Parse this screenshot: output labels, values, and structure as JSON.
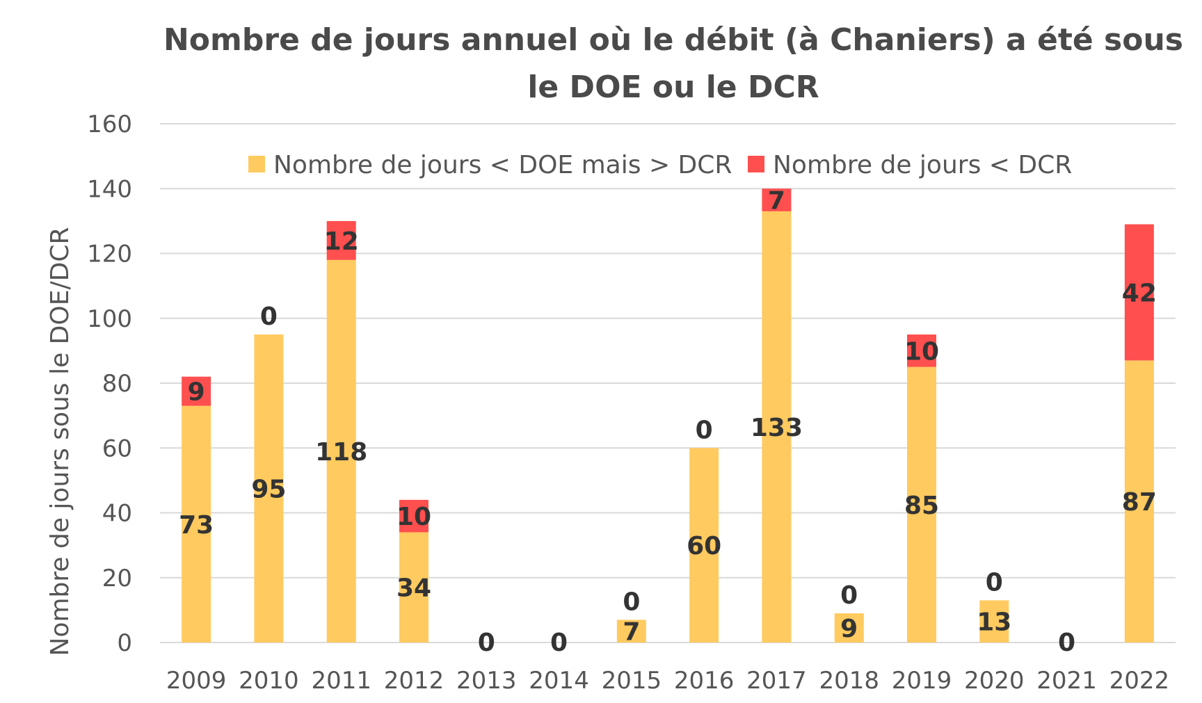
{
  "chart_data": {
    "type": "bar",
    "stacked": true,
    "title_line1": "Nombre de jours annuel où le débit (à Chaniers) a été sous",
    "title_line2": "le DOE ou le DCR",
    "xlabel": "",
    "ylabel": "Nombre de jours sous le DOE/DCR",
    "ylim": [
      0,
      160
    ],
    "yticks": [
      0,
      20,
      40,
      60,
      80,
      100,
      120,
      140,
      160
    ],
    "grid": true,
    "legend_position": "top",
    "categories": [
      "2009",
      "2010",
      "2011",
      "2012",
      "2013",
      "2014",
      "2015",
      "2016",
      "2017",
      "2018",
      "2019",
      "2020",
      "2021",
      "2022"
    ],
    "series": [
      {
        "name": "Nombre de jours < DOE mais > DCR",
        "color": "#FFCA5F",
        "values": [
          73,
          95,
          118,
          34,
          0,
          0,
          7,
          60,
          133,
          9,
          85,
          13,
          0,
          87
        ]
      },
      {
        "name": "Nombre de jours < DCR",
        "color": "#FF4F4F",
        "values": [
          9,
          0,
          12,
          10,
          0,
          0,
          0,
          0,
          7,
          0,
          10,
          0,
          0,
          42
        ]
      }
    ]
  }
}
